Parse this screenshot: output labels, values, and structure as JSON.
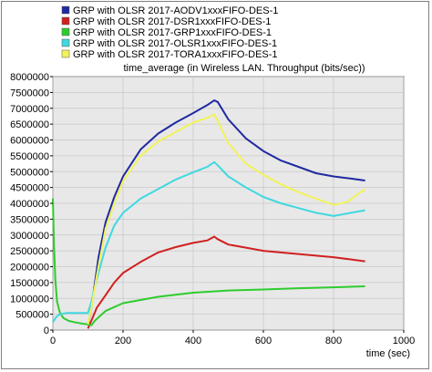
{
  "chart_data": {
    "type": "line",
    "title": "time_average (in Wireless LAN. Throughput (bits/sec))",
    "xlabel": "time (sec)",
    "ylabel": "",
    "xlim": [
      0,
      1000
    ],
    "ylim": [
      0,
      8000000
    ],
    "x_ticks": [
      0,
      200,
      400,
      600,
      800,
      1000
    ],
    "y_ticks": [
      0,
      500000,
      1000000,
      1500000,
      2000000,
      2500000,
      3000000,
      3500000,
      4000000,
      4500000,
      5000000,
      5500000,
      6000000,
      6500000,
      7000000,
      7500000,
      8000000
    ],
    "x_tick_labels": [
      "0",
      "200",
      "400",
      "600",
      "800",
      "1000"
    ],
    "y_tick_labels": [
      "0",
      "500000",
      "1000000",
      "1500000",
      "2000000",
      "2500000",
      "3000000",
      "3500000",
      "4000000",
      "4500000",
      "5000000",
      "5500000",
      "6000000",
      "6500000",
      "7000000",
      "7500000",
      "8000000"
    ],
    "grid": true,
    "legend_position": "top",
    "plot_background": "#e8e8e8",
    "series": [
      {
        "name": "GRP with OLSR 2017-AODV1xxxFIFO-DES-1",
        "color": "#1f2aa0",
        "points": [
          [
            100,
            150000
          ],
          [
            110,
            700000
          ],
          [
            120,
            1500000
          ],
          [
            130,
            2300000
          ],
          [
            150,
            3400000
          ],
          [
            175,
            4200000
          ],
          [
            200,
            4850000
          ],
          [
            250,
            5700000
          ],
          [
            300,
            6200000
          ],
          [
            350,
            6550000
          ],
          [
            400,
            6850000
          ],
          [
            440,
            7100000
          ],
          [
            460,
            7250000
          ],
          [
            470,
            7200000
          ],
          [
            500,
            6650000
          ],
          [
            550,
            6050000
          ],
          [
            600,
            5650000
          ],
          [
            650,
            5350000
          ],
          [
            700,
            5150000
          ],
          [
            750,
            4950000
          ],
          [
            800,
            4850000
          ],
          [
            850,
            4780000
          ],
          [
            890,
            4720000
          ]
        ]
      },
      {
        "name": "GRP with OLSR 2017-DSR1xxxFIFO-DES-1",
        "color": "#d02020",
        "points": [
          [
            100,
            50000
          ],
          [
            110,
            300000
          ],
          [
            125,
            700000
          ],
          [
            150,
            1100000
          ],
          [
            175,
            1500000
          ],
          [
            200,
            1800000
          ],
          [
            250,
            2150000
          ],
          [
            300,
            2450000
          ],
          [
            350,
            2620000
          ],
          [
            400,
            2750000
          ],
          [
            440,
            2830000
          ],
          [
            460,
            2950000
          ],
          [
            470,
            2870000
          ],
          [
            500,
            2700000
          ],
          [
            550,
            2600000
          ],
          [
            600,
            2500000
          ],
          [
            700,
            2400000
          ],
          [
            800,
            2300000
          ],
          [
            890,
            2170000
          ]
        ]
      },
      {
        "name": "GRP with OLSR 2017-GRP1xxxFIFO-DES-1",
        "color": "#2ecc2e",
        "points": [
          [
            0,
            4150000
          ],
          [
            3,
            2700000
          ],
          [
            7,
            1600000
          ],
          [
            12,
            900000
          ],
          [
            20,
            550000
          ],
          [
            30,
            380000
          ],
          [
            45,
            290000
          ],
          [
            60,
            250000
          ],
          [
            80,
            210000
          ],
          [
            100,
            180000
          ],
          [
            110,
            150000
          ],
          [
            120,
            300000
          ],
          [
            150,
            600000
          ],
          [
            200,
            850000
          ],
          [
            250,
            950000
          ],
          [
            300,
            1050000
          ],
          [
            400,
            1180000
          ],
          [
            500,
            1250000
          ],
          [
            600,
            1280000
          ],
          [
            700,
            1320000
          ],
          [
            800,
            1350000
          ],
          [
            890,
            1380000
          ]
        ]
      },
      {
        "name": "GRP with OLSR 2017-OLSR1xxxFIFO-DES-1",
        "color": "#40d8e0",
        "points": [
          [
            0,
            250000
          ],
          [
            10,
            420000
          ],
          [
            20,
            500000
          ],
          [
            40,
            540000
          ],
          [
            60,
            540000
          ],
          [
            80,
            540000
          ],
          [
            100,
            540000
          ],
          [
            110,
            900000
          ],
          [
            125,
            1600000
          ],
          [
            150,
            2600000
          ],
          [
            175,
            3300000
          ],
          [
            200,
            3700000
          ],
          [
            250,
            4150000
          ],
          [
            300,
            4450000
          ],
          [
            350,
            4750000
          ],
          [
            400,
            4980000
          ],
          [
            440,
            5150000
          ],
          [
            460,
            5300000
          ],
          [
            470,
            5200000
          ],
          [
            500,
            4850000
          ],
          [
            550,
            4500000
          ],
          [
            600,
            4200000
          ],
          [
            650,
            4000000
          ],
          [
            700,
            3850000
          ],
          [
            750,
            3700000
          ],
          [
            800,
            3600000
          ],
          [
            850,
            3700000
          ],
          [
            890,
            3780000
          ]
        ]
      },
      {
        "name": "GRP with OLSR 2017-TORA1xxxFIFO-DES-1",
        "color": "#f2f25a",
        "points": [
          [
            100,
            180000
          ],
          [
            110,
            700000
          ],
          [
            125,
            1700000
          ],
          [
            150,
            3200000
          ],
          [
            175,
            4000000
          ],
          [
            200,
            4700000
          ],
          [
            250,
            5500000
          ],
          [
            300,
            5950000
          ],
          [
            350,
            6250000
          ],
          [
            400,
            6550000
          ],
          [
            440,
            6700000
          ],
          [
            460,
            6800000
          ],
          [
            470,
            6600000
          ],
          [
            500,
            5900000
          ],
          [
            550,
            5250000
          ],
          [
            600,
            4900000
          ],
          [
            650,
            4600000
          ],
          [
            700,
            4350000
          ],
          [
            750,
            4150000
          ],
          [
            800,
            3950000
          ],
          [
            840,
            4050000
          ],
          [
            870,
            4300000
          ],
          [
            890,
            4450000
          ]
        ]
      }
    ]
  }
}
